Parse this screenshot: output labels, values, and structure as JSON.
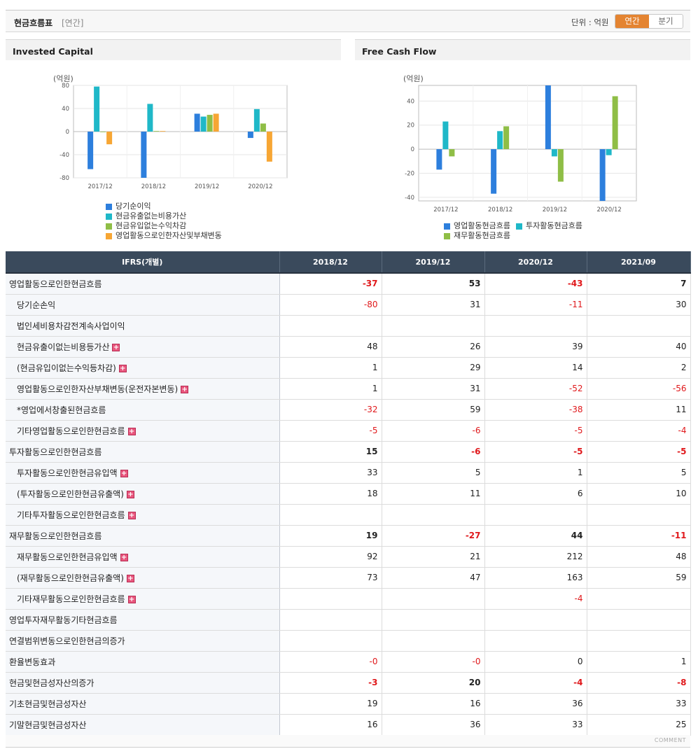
{
  "header": {
    "title": "현금흐름표",
    "period": "[연간]",
    "unit": "단위 : 억원",
    "tabs": [
      {
        "label": "연간",
        "active": true
      },
      {
        "label": "분기",
        "active": false
      }
    ]
  },
  "colors": {
    "blue": "#2d7fdd",
    "teal": "#1fb8c8",
    "green": "#8fbe46",
    "orange": "#f7a634",
    "neg": "#e0181b",
    "header_bg": "#3a4a5c",
    "accent": "#e48431"
  },
  "chart_data": [
    {
      "type": "bar",
      "title": "Invested Capital",
      "ylabel": "(억원)",
      "ylim": [
        -80,
        80
      ],
      "yticks": [
        80,
        40,
        0,
        -40,
        -80
      ],
      "categories": [
        "2017/12",
        "2018/12",
        "2019/12",
        "2020/12"
      ],
      "series": [
        {
          "name": "당기순이익",
          "color": "#2d7fdd",
          "values": [
            -65,
            -80,
            31,
            -11
          ]
        },
        {
          "name": "현금유출없는비용가산",
          "color": "#1fb8c8",
          "values": [
            78,
            48,
            26,
            39
          ]
        },
        {
          "name": "현금유입없는수익차감",
          "color": "#8fbe46",
          "values": [
            0,
            1,
            29,
            14
          ]
        },
        {
          "name": "영업활동으로인한자산및부채변동",
          "color": "#f7a634",
          "values": [
            -22,
            1,
            31,
            -52
          ]
        }
      ],
      "grid": true,
      "legend": "bottom"
    },
    {
      "type": "bar",
      "title": "Free Cash Flow",
      "ylabel": "(억원)",
      "ylim": [
        -43,
        53
      ],
      "yticks": [
        40,
        20,
        0,
        -20,
        -40
      ],
      "categories": [
        "2017/12",
        "2018/12",
        "2019/12",
        "2020/12"
      ],
      "series": [
        {
          "name": "영업활동현금흐름",
          "color": "#2d7fdd",
          "values": [
            -17,
            -37,
            53,
            -43
          ]
        },
        {
          "name": "투자활동현금흐름",
          "color": "#1fb8c8",
          "values": [
            23,
            15,
            -6,
            -5
          ]
        },
        {
          "name": "재무활동현금흐름",
          "color": "#8fbe46",
          "values": [
            -6,
            19,
            -27,
            44
          ]
        }
      ],
      "grid": true,
      "legend": "bottom"
    }
  ],
  "table": {
    "header_label": "IFRS(개별)",
    "columns": [
      "2018/12",
      "2019/12",
      "2020/12",
      "2021/09"
    ],
    "rows": [
      {
        "label": "영업활동으로인한현금흐름",
        "level": 0,
        "bold": true,
        "plus": false,
        "values": [
          "-37",
          "53",
          "-43",
          "7"
        ]
      },
      {
        "label": "당기순손익",
        "level": 1,
        "bold": false,
        "plus": false,
        "values": [
          "-80",
          "31",
          "-11",
          "30"
        ]
      },
      {
        "label": "법인세비용차감전계속사업이익",
        "level": 1,
        "bold": false,
        "plus": false,
        "values": [
          "",
          "",
          "",
          ""
        ]
      },
      {
        "label": "현금유출이없는비용등가산",
        "level": 1,
        "bold": false,
        "plus": true,
        "values": [
          "48",
          "26",
          "39",
          "40"
        ]
      },
      {
        "label": "(현금유입이없는수익등차감)",
        "level": 1,
        "bold": false,
        "plus": true,
        "values": [
          "1",
          "29",
          "14",
          "2"
        ]
      },
      {
        "label": "영업활동으로인한자산부채변동(운전자본변동)",
        "level": 1,
        "bold": false,
        "plus": true,
        "values": [
          "1",
          "31",
          "-52",
          "-56"
        ]
      },
      {
        "label": "*영업에서창출된현금흐름",
        "level": 1,
        "bold": false,
        "plus": false,
        "values": [
          "-32",
          "59",
          "-38",
          "11"
        ]
      },
      {
        "label": "기타영업활동으로인한현금흐름",
        "level": 1,
        "bold": false,
        "plus": true,
        "values": [
          "-5",
          "-6",
          "-5",
          "-4"
        ]
      },
      {
        "label": "투자활동으로인한현금흐름",
        "level": 0,
        "bold": true,
        "plus": false,
        "values": [
          "15",
          "-6",
          "-5",
          "-5"
        ]
      },
      {
        "label": "투자활동으로인한현금유입액",
        "level": 1,
        "bold": false,
        "plus": true,
        "values": [
          "33",
          "5",
          "1",
          "5"
        ]
      },
      {
        "label": "(투자활동으로인한현금유출액)",
        "level": 1,
        "bold": false,
        "plus": true,
        "values": [
          "18",
          "11",
          "6",
          "10"
        ]
      },
      {
        "label": "기타투자활동으로인한현금흐름",
        "level": 1,
        "bold": false,
        "plus": true,
        "values": [
          "",
          "",
          "",
          ""
        ]
      },
      {
        "label": "재무활동으로인한현금흐름",
        "level": 0,
        "bold": true,
        "plus": false,
        "values": [
          "19",
          "-27",
          "44",
          "-11"
        ]
      },
      {
        "label": "재무활동으로인한현금유입액",
        "level": 1,
        "bold": false,
        "plus": true,
        "values": [
          "92",
          "21",
          "212",
          "48"
        ]
      },
      {
        "label": "(재무활동으로인한현금유출액)",
        "level": 1,
        "bold": false,
        "plus": true,
        "values": [
          "73",
          "47",
          "163",
          "59"
        ]
      },
      {
        "label": "기타재무활동으로인한현금흐름",
        "level": 1,
        "bold": false,
        "plus": true,
        "values": [
          "",
          "",
          "-4",
          ""
        ]
      },
      {
        "label": "영업투자재무활동기타현금흐름",
        "level": 0,
        "bold": false,
        "plus": false,
        "values": [
          "",
          "",
          "",
          ""
        ]
      },
      {
        "label": "연결범위변동으로인한현금의증가",
        "level": 0,
        "bold": false,
        "plus": false,
        "values": [
          "",
          "",
          "",
          ""
        ]
      },
      {
        "label": "환율변동효과",
        "level": 0,
        "bold": false,
        "plus": false,
        "values": [
          "-0",
          "-0",
          "0",
          "1"
        ]
      },
      {
        "label": "현금및현금성자산의증가",
        "level": 0,
        "bold": true,
        "plus": false,
        "values": [
          "-3",
          "20",
          "-4",
          "-8"
        ]
      },
      {
        "label": "기초현금및현금성자산",
        "level": 0,
        "bold": false,
        "plus": false,
        "values": [
          "19",
          "16",
          "36",
          "33"
        ]
      },
      {
        "label": "기말현금및현금성자산",
        "level": 0,
        "bold": false,
        "plus": false,
        "values": [
          "16",
          "36",
          "33",
          "25"
        ]
      }
    ]
  },
  "footer": {
    "label": "COMMENT"
  }
}
